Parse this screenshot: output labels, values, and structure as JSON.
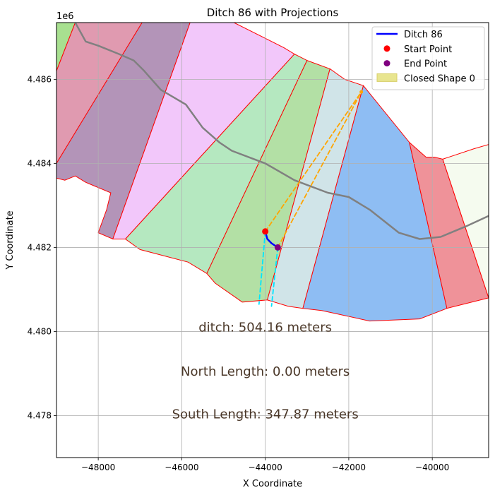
{
  "chart_data": {
    "type": "line",
    "title": "Ditch 86 with Projections",
    "xlabel": "X Coordinate",
    "ylabel": "Y Coordinate",
    "y_offset_label": "1e6",
    "xlim": [
      -49000,
      -38650
    ],
    "ylim": [
      4477000,
      4487350
    ],
    "grid": true,
    "legend_position": "top-right",
    "x_ticks": [
      {
        "value": -48000,
        "label": "−48000"
      },
      {
        "value": -46000,
        "label": "−46000"
      },
      {
        "value": -44000,
        "label": "−44000"
      },
      {
        "value": -42000,
        "label": "−42000"
      },
      {
        "value": -40000,
        "label": "−40000"
      }
    ],
    "y_ticks": [
      {
        "value": 4478000,
        "label": "4.478"
      },
      {
        "value": 4480000,
        "label": "4.480"
      },
      {
        "value": 4482000,
        "label": "4.482"
      },
      {
        "value": 4484000,
        "label": "4.484"
      },
      {
        "value": 4486000,
        "label": "4.486"
      }
    ],
    "legend": [
      {
        "label": "Ditch 86",
        "kind": "line",
        "color": "#0000ff"
      },
      {
        "label": "Start Point",
        "kind": "marker",
        "color": "#ff0000"
      },
      {
        "label": "End Point",
        "kind": "marker",
        "color": "#800080"
      },
      {
        "label": "Closed Shape 0",
        "kind": "patch",
        "color": "#e5e283"
      }
    ],
    "annotations": [
      {
        "text": "ditch: 504.16 meters",
        "x": -44000,
        "y": 4480100
      },
      {
        "text": "North Length: 0.00 meters",
        "x": -44000,
        "y": 4479050
      },
      {
        "text": "South Length: 347.87 meters",
        "x": -44000,
        "y": 4478030
      }
    ],
    "annotation_color": "#4a3728",
    "zones": [
      {
        "color": "#a8e090",
        "points": [
          [
            -49000,
            4487350
          ],
          [
            -48550,
            4487350
          ],
          [
            -49000,
            4486200
          ]
        ]
      },
      {
        "color": "#e09ab0",
        "points": [
          [
            -48550,
            4487350
          ],
          [
            -46950,
            4487350
          ],
          [
            -49000,
            4484000
          ],
          [
            -49000,
            4486200
          ]
        ]
      },
      {
        "color": "#b394b8",
        "points": [
          [
            -46950,
            4487350
          ],
          [
            -45800,
            4487350
          ],
          [
            -47650,
            4482200
          ],
          [
            -48000,
            4482350
          ],
          [
            -47800,
            4482900
          ],
          [
            -47700,
            4483300
          ],
          [
            -48300,
            4483550
          ],
          [
            -48550,
            4483700
          ],
          [
            -48800,
            4483600
          ],
          [
            -49000,
            4483650
          ],
          [
            -49000,
            4484000
          ]
        ]
      },
      {
        "color": "#f2c7fa",
        "points": [
          [
            -45800,
            4487350
          ],
          [
            -44750,
            4487350
          ],
          [
            -43550,
            4486750
          ],
          [
            -43300,
            4486600
          ],
          [
            -47350,
            4482200
          ],
          [
            -47650,
            4482200
          ]
        ]
      },
      {
        "color": "#b5e8c0",
        "points": [
          [
            -43300,
            4486600
          ],
          [
            -43000,
            4486450
          ],
          [
            -45400,
            4481380
          ],
          [
            -45850,
            4481650
          ],
          [
            -47000,
            4481950
          ],
          [
            -47350,
            4482200
          ]
        ]
      },
      {
        "color": "#b3e0a5",
        "points": [
          [
            -43000,
            4486450
          ],
          [
            -42450,
            4486250
          ],
          [
            -43950,
            4480750
          ],
          [
            -44550,
            4480700
          ],
          [
            -45200,
            4481150
          ],
          [
            -45400,
            4481380
          ]
        ]
      },
      {
        "color": "#d0e4e8",
        "points": [
          [
            -42450,
            4486250
          ],
          [
            -42100,
            4486000
          ],
          [
            -41650,
            4485850
          ],
          [
            -43100,
            4480550
          ],
          [
            -43450,
            4480600
          ],
          [
            -43950,
            4480750
          ]
        ]
      },
      {
        "color": "#8ebdf3",
        "points": [
          [
            -41650,
            4485850
          ],
          [
            -40550,
            4484500
          ],
          [
            -39650,
            4480550
          ],
          [
            -40300,
            4480300
          ],
          [
            -41500,
            4480250
          ],
          [
            -42650,
            4480500
          ],
          [
            -43100,
            4480550
          ]
        ]
      },
      {
        "color": "#ef9299",
        "points": [
          [
            -40550,
            4484500
          ],
          [
            -40150,
            4484150
          ],
          [
            -39950,
            4484150
          ],
          [
            -39750,
            4484100
          ],
          [
            -38650,
            4480800
          ],
          [
            -39650,
            4480550
          ]
        ]
      },
      {
        "color": "#f5fbef",
        "points": [
          [
            -39750,
            4484100
          ],
          [
            -39000,
            4484350
          ],
          [
            -38650,
            4484450
          ],
          [
            -38650,
            4480800
          ]
        ]
      }
    ],
    "zone_outline_color": "#ff0000",
    "series": [
      {
        "name": "",
        "color": "#808080",
        "style": "solid",
        "x": [
          -48550,
          -48300,
          -48000,
          -47500,
          -47150,
          -46900,
          -46500,
          -45900,
          -45500,
          -45100,
          -44800,
          -44000,
          -43300,
          -42500,
          -42000,
          -41500,
          -40800,
          -40300,
          -39800,
          -39200,
          -38650
        ],
        "y": [
          4487350,
          4486900,
          4486800,
          4486600,
          4486450,
          4486200,
          4485750,
          4485400,
          4484850,
          4484500,
          4484300,
          4484000,
          4483600,
          4483300,
          4483200,
          4482900,
          4482350,
          4482200,
          4482250,
          4482500,
          4482750
        ]
      },
      {
        "name": "Ditch 86",
        "color": "#0000ff",
        "style": "solid",
        "x": [
          -44000,
          -43950,
          -43850,
          -43700
        ],
        "y": [
          4482380,
          4482200,
          4482100,
          4482000
        ]
      },
      {
        "name": "",
        "color": "#ffa500",
        "style": "dashed",
        "x": [
          -44000,
          -41700
        ],
        "y": [
          4482380,
          4485700
        ]
      },
      {
        "name": "",
        "color": "#ffa500",
        "style": "dashed",
        "x": [
          -43700,
          -41700
        ],
        "y": [
          4482000,
          4485700
        ]
      },
      {
        "name": "",
        "color": "#00e5ff",
        "style": "dashed",
        "x": [
          -44000,
          -44150
        ],
        "y": [
          4482380,
          4480650
        ]
      },
      {
        "name": "",
        "color": "#00e5ff",
        "style": "dashed",
        "x": [
          -43700,
          -43850
        ],
        "y": [
          4482000,
          4480600
        ]
      }
    ],
    "points": [
      {
        "name": "Start Point",
        "x": -44000,
        "y": 4482380,
        "color": "#ff0000"
      },
      {
        "name": "End Point",
        "x": -43700,
        "y": 4482000,
        "color": "#800080"
      },
      {
        "name": "",
        "x": -41700,
        "y": 4485700,
        "color": "#ffa500",
        "small": true
      }
    ]
  }
}
